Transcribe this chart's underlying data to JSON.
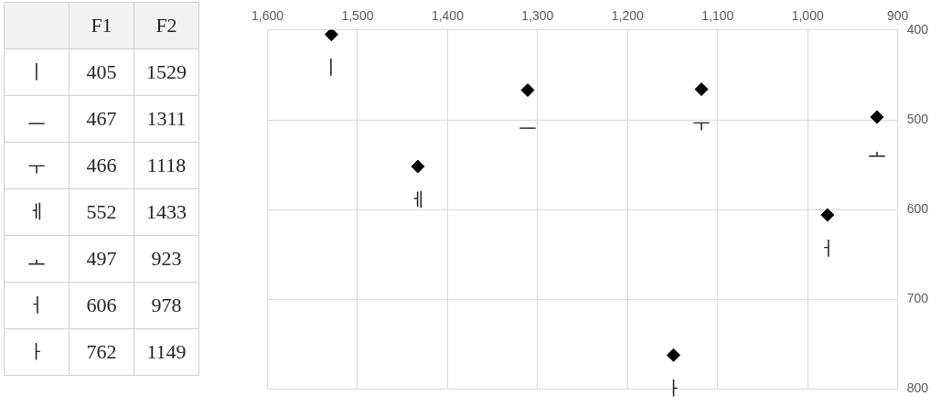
{
  "chart_data": [
    {
      "type": "other",
      "annotations": [
        "F1",
        "F2",
        "ㅣ",
        "405",
        "1529",
        "ㅡ",
        "467",
        "1311",
        "ㅜ",
        "466",
        "1118",
        "ㅔ",
        "552",
        "1433",
        "ㅗ",
        "497",
        "923",
        "ㅓ",
        "606",
        "978",
        "ㅏ",
        "762",
        "1149"
      ]
    },
    {
      "type": "scatter",
      "series": [
        {
          "color": "#000000",
          "x": [
            1529,
            1311,
            1118,
            1433,
            923,
            978,
            1149
          ],
          "values": [
            405,
            467,
            466,
            552,
            497,
            606,
            762
          ]
        }
      ],
      "xlim": [
        1600,
        900
      ],
      "xticks": [
        {
          "value": 1600,
          "label": "1,600"
        },
        {
          "value": 1500,
          "label": "1,500"
        },
        {
          "value": 1400,
          "label": "1,400"
        },
        {
          "value": 1300,
          "label": "1,300"
        },
        {
          "value": 1200,
          "label": "1,200"
        },
        {
          "value": 1100,
          "label": "1,100"
        },
        {
          "value": 1000,
          "label": "1,000"
        },
        900
      ],
      "ylim": [
        800,
        400
      ],
      "yticks": [
        400,
        500,
        600,
        700,
        800
      ],
      "annotations": [
        {
          "text": "ㅣ",
          "x": 1529,
          "y": 405
        },
        {
          "text": "ㅡ",
          "x": 1311,
          "y": 467
        },
        {
          "text": "ㅜ",
          "x": 1118,
          "y": 466
        },
        {
          "text": "ㅔ",
          "x": 1433,
          "y": 552
        },
        {
          "text": "ㅗ",
          "x": 923,
          "y": 497
        },
        {
          "text": "ㅓ",
          "x": 978,
          "y": 606
        },
        {
          "text": "ㅏ",
          "x": 1149,
          "y": 762
        }
      ],
      "grid": true,
      "marker": "diamond",
      "legend": false
    }
  ]
}
